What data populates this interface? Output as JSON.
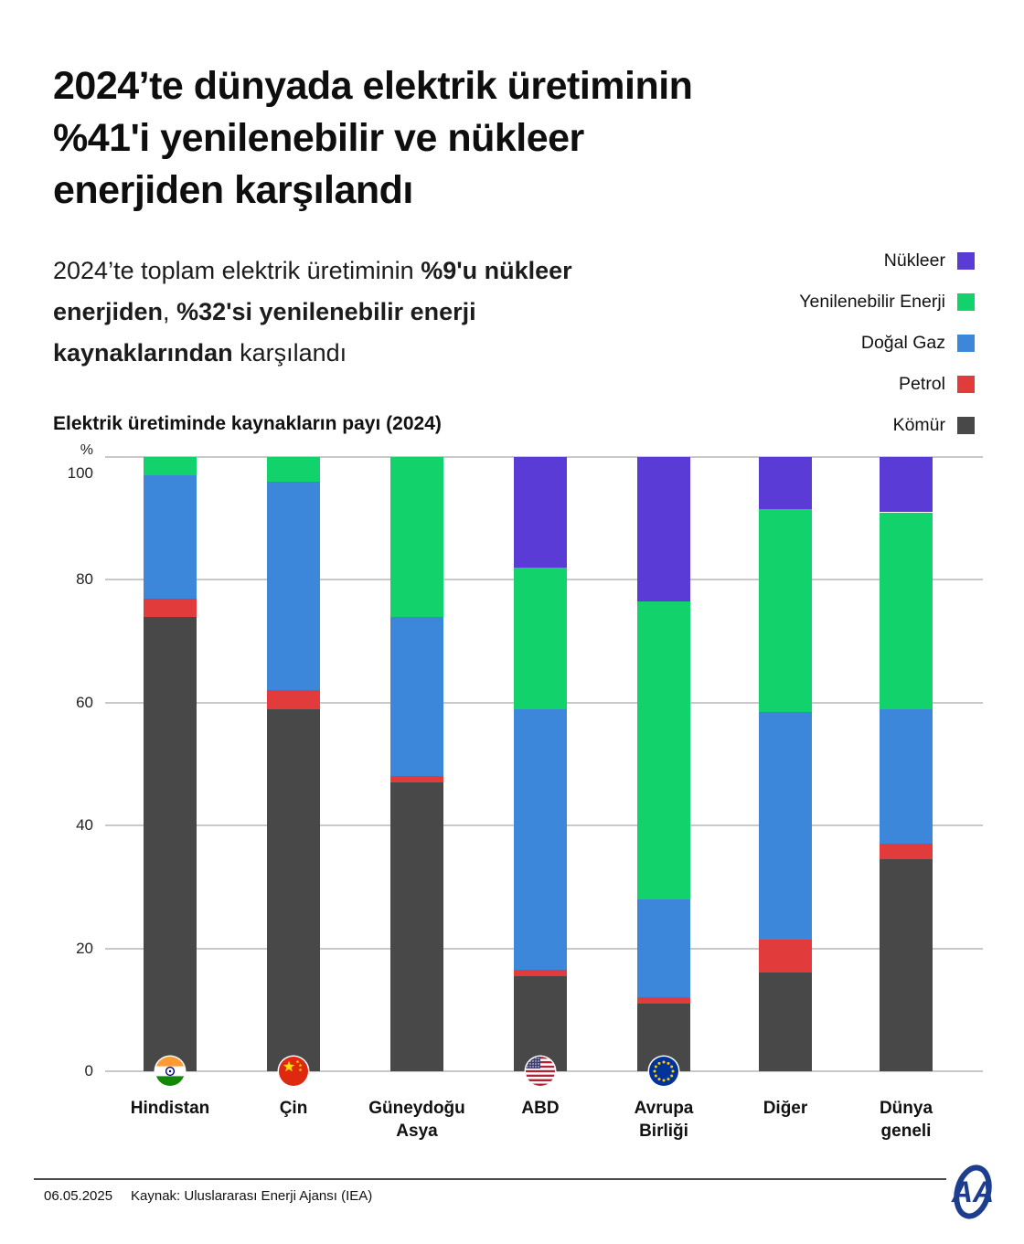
{
  "header": {
    "title_lines": [
      "2024’te dünyada elektrik üretiminin",
      "%41'i yenilenebilir ve nükleer",
      "enerjiden karşılandı"
    ],
    "subtitle_segments": [
      {
        "text": "2024’te toplam elektrik üretiminin ",
        "bold": false
      },
      {
        "text": "%9'u nükleer enerjiden",
        "bold": true
      },
      {
        "text": ", ",
        "bold": false
      },
      {
        "text": "%32'si yenilenebilir enerji kaynaklarından",
        "bold": true
      },
      {
        "text": " karşılandı",
        "bold": false
      }
    ]
  },
  "chart_data": {
    "type": "bar",
    "stacked": true,
    "title": "Elektrik üretiminde kaynakların payı (2024)",
    "unit": "%",
    "ylim": [
      0,
      100
    ],
    "yticks": [
      0,
      20,
      40,
      60,
      80,
      100
    ],
    "grid": true,
    "legend_position": "top-right",
    "categories": [
      "Hindistan",
      "Çin",
      "Güneydoğu Asya",
      "ABD",
      "Avrupa Birliği",
      "Diğer",
      "Dünya geneli"
    ],
    "category_flags": [
      "india-flag-icon",
      "china-flag-icon",
      null,
      "usa-flag-icon",
      "eu-flag-icon",
      null,
      null
    ],
    "series": [
      {
        "name": "Nükleer",
        "color": "#5B3BD5",
        "values": [
          0,
          0,
          0,
          18,
          23.5,
          8.5,
          9
        ]
      },
      {
        "name": "Yenilenebilir Enerji",
        "color": "#12D36B",
        "values": [
          3,
          4,
          26,
          23,
          48.5,
          33,
          32
        ]
      },
      {
        "name": "Doğal Gaz",
        "color": "#3C87DA",
        "values": [
          20,
          34,
          26,
          42.5,
          16,
          37,
          22
        ]
      },
      {
        "name": "Petrol",
        "color": "#E23B3B",
        "values": [
          3,
          3,
          1,
          1,
          1,
          5.5,
          2.5
        ]
      },
      {
        "name": "Kömür",
        "color": "#484848",
        "values": [
          74,
          59,
          47,
          15.5,
          11,
          16,
          34.5
        ]
      }
    ]
  },
  "footer": {
    "date": "06.05.2025",
    "source": "Kaynak: Uluslararası Enerji Ajansı (IEA)",
    "logo_text": "AA"
  }
}
